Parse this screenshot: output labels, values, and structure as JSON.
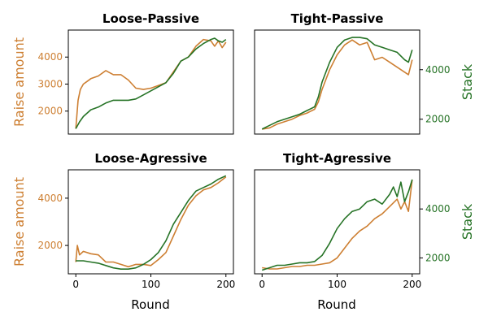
{
  "colors": {
    "raise": "#cd7f32",
    "stack": "#267326",
    "axis": "#000000"
  },
  "chart_data": [
    {
      "type": "line",
      "title": "Loose-Passive",
      "xlabel": "",
      "ylabel": "Raise amount",
      "ylabel_right": "",
      "x_ticks": [],
      "y_ticks": [
        2000,
        3000,
        4000
      ],
      "y_ticks_right": [],
      "xlim": [
        -10,
        210
      ],
      "ylim": [
        1150,
        5000
      ],
      "ylim_right": [
        1150,
        5000
      ],
      "grid": false,
      "series": [
        {
          "name": "Raise amount",
          "axis": "left",
          "color": "#cd7f32",
          "x": [
            0,
            3,
            6,
            10,
            15,
            20,
            30,
            40,
            50,
            60,
            70,
            80,
            90,
            100,
            110,
            120,
            130,
            140,
            150,
            160,
            170,
            180,
            185,
            190,
            195,
            200
          ],
          "y": [
            1350,
            2400,
            2800,
            3000,
            3100,
            3200,
            3300,
            3500,
            3350,
            3350,
            3150,
            2850,
            2800,
            2850,
            2950,
            3050,
            3450,
            3850,
            4000,
            4400,
            4650,
            4600,
            4400,
            4600,
            4350,
            4550
          ]
        },
        {
          "name": "Stack",
          "axis": "right",
          "color": "#267326",
          "x": [
            0,
            5,
            10,
            20,
            30,
            40,
            50,
            60,
            70,
            80,
            90,
            100,
            110,
            120,
            130,
            140,
            150,
            160,
            170,
            180,
            185,
            190,
            195,
            200
          ],
          "y": [
            1350,
            1600,
            1800,
            2050,
            2150,
            2300,
            2400,
            2400,
            2400,
            2450,
            2600,
            2750,
            2900,
            3050,
            3400,
            3850,
            4000,
            4300,
            4500,
            4650,
            4700,
            4600,
            4550,
            4650
          ]
        }
      ]
    },
    {
      "type": "line",
      "title": "Tight-Passive",
      "xlabel": "",
      "ylabel": "",
      "ylabel_right": "Stack",
      "x_ticks": [],
      "y_ticks": [],
      "y_ticks_right": [
        2000,
        4000
      ],
      "xlim": [
        -10,
        210
      ],
      "ylim": [
        1400,
        5600
      ],
      "ylim_right": [
        1400,
        5600
      ],
      "grid": false,
      "series": [
        {
          "name": "Raise amount",
          "axis": "left",
          "color": "#cd7f32",
          "x": [
            0,
            10,
            20,
            30,
            40,
            50,
            60,
            70,
            75,
            80,
            90,
            100,
            110,
            120,
            130,
            140,
            150,
            160,
            170,
            180,
            190,
            195,
            200
          ],
          "y": [
            1600,
            1650,
            1800,
            1900,
            2000,
            2150,
            2250,
            2400,
            2700,
            3200,
            4000,
            4600,
            5000,
            5200,
            5000,
            5100,
            4400,
            4500,
            4300,
            4100,
            3900,
            3800,
            4400
          ]
        },
        {
          "name": "Stack",
          "axis": "right",
          "color": "#267326",
          "x": [
            0,
            10,
            20,
            30,
            40,
            50,
            60,
            70,
            75,
            80,
            90,
            100,
            110,
            120,
            130,
            140,
            150,
            160,
            170,
            180,
            190,
            195,
            200
          ],
          "y": [
            1600,
            1750,
            1900,
            2000,
            2100,
            2200,
            2350,
            2500,
            2900,
            3500,
            4300,
            4900,
            5200,
            5300,
            5300,
            5250,
            5000,
            4900,
            4800,
            4700,
            4400,
            4300,
            4800
          ]
        }
      ]
    },
    {
      "type": "line",
      "title": "Loose-Agressive",
      "xlabel": "Round",
      "ylabel": "Raise amount",
      "ylabel_right": "",
      "x_ticks": [
        0,
        100,
        200
      ],
      "y_ticks": [
        2000,
        4000
      ],
      "y_ticks_right": [],
      "xlim": [
        -10,
        210
      ],
      "ylim": [
        800,
        5200
      ],
      "ylim_right": [
        800,
        5200
      ],
      "grid": false,
      "series": [
        {
          "name": "Raise amount",
          "axis": "left",
          "color": "#cd7f32",
          "x": [
            0,
            2,
            5,
            10,
            20,
            30,
            40,
            50,
            60,
            70,
            80,
            90,
            100,
            110,
            120,
            130,
            140,
            150,
            160,
            170,
            180,
            190,
            200
          ],
          "y": [
            1300,
            2000,
            1600,
            1750,
            1650,
            1600,
            1300,
            1300,
            1200,
            1100,
            1200,
            1200,
            1150,
            1400,
            1700,
            2400,
            3100,
            3700,
            4100,
            4350,
            4450,
            4650,
            4900
          ]
        },
        {
          "name": "Stack",
          "axis": "right",
          "color": "#267326",
          "x": [
            0,
            10,
            20,
            30,
            40,
            50,
            60,
            70,
            80,
            90,
            100,
            110,
            120,
            130,
            140,
            150,
            160,
            170,
            180,
            190,
            200
          ],
          "y": [
            1350,
            1350,
            1300,
            1250,
            1150,
            1050,
            1000,
            1000,
            1050,
            1200,
            1400,
            1700,
            2200,
            2900,
            3400,
            3900,
            4300,
            4450,
            4600,
            4800,
            4950
          ]
        }
      ]
    },
    {
      "type": "line",
      "title": "Tight-Agressive",
      "xlabel": "Round",
      "ylabel": "",
      "ylabel_right": "Stack",
      "x_ticks": [
        0,
        100,
        200
      ],
      "y_ticks": [],
      "y_ticks_right": [
        2000,
        4000
      ],
      "xlim": [
        -10,
        210
      ],
      "ylim": [
        1350,
        5600
      ],
      "ylim_right": [
        1350,
        5600
      ],
      "grid": false,
      "series": [
        {
          "name": "Raise amount",
          "axis": "left",
          "color": "#cd7f32",
          "x": [
            0,
            10,
            20,
            30,
            40,
            50,
            60,
            70,
            80,
            90,
            100,
            110,
            120,
            130,
            140,
            150,
            160,
            170,
            180,
            185,
            190,
            195,
            200
          ],
          "y": [
            1600,
            1550,
            1550,
            1600,
            1650,
            1650,
            1700,
            1700,
            1750,
            1800,
            2000,
            2400,
            2800,
            3100,
            3300,
            3600,
            3800,
            4100,
            4400,
            4000,
            4300,
            3900,
            5200
          ]
        },
        {
          "name": "Stack",
          "axis": "right",
          "color": "#267326",
          "x": [
            0,
            10,
            20,
            30,
            40,
            50,
            60,
            70,
            80,
            90,
            100,
            110,
            120,
            130,
            140,
            150,
            160,
            170,
            175,
            180,
            185,
            190,
            195,
            200
          ],
          "y": [
            1500,
            1600,
            1700,
            1700,
            1750,
            1800,
            1800,
            1850,
            2100,
            2600,
            3200,
            3600,
            3900,
            4000,
            4300,
            4400,
            4200,
            4600,
            4900,
            4500,
            5100,
            4300,
            4700,
            5200
          ]
        }
      ]
    }
  ]
}
